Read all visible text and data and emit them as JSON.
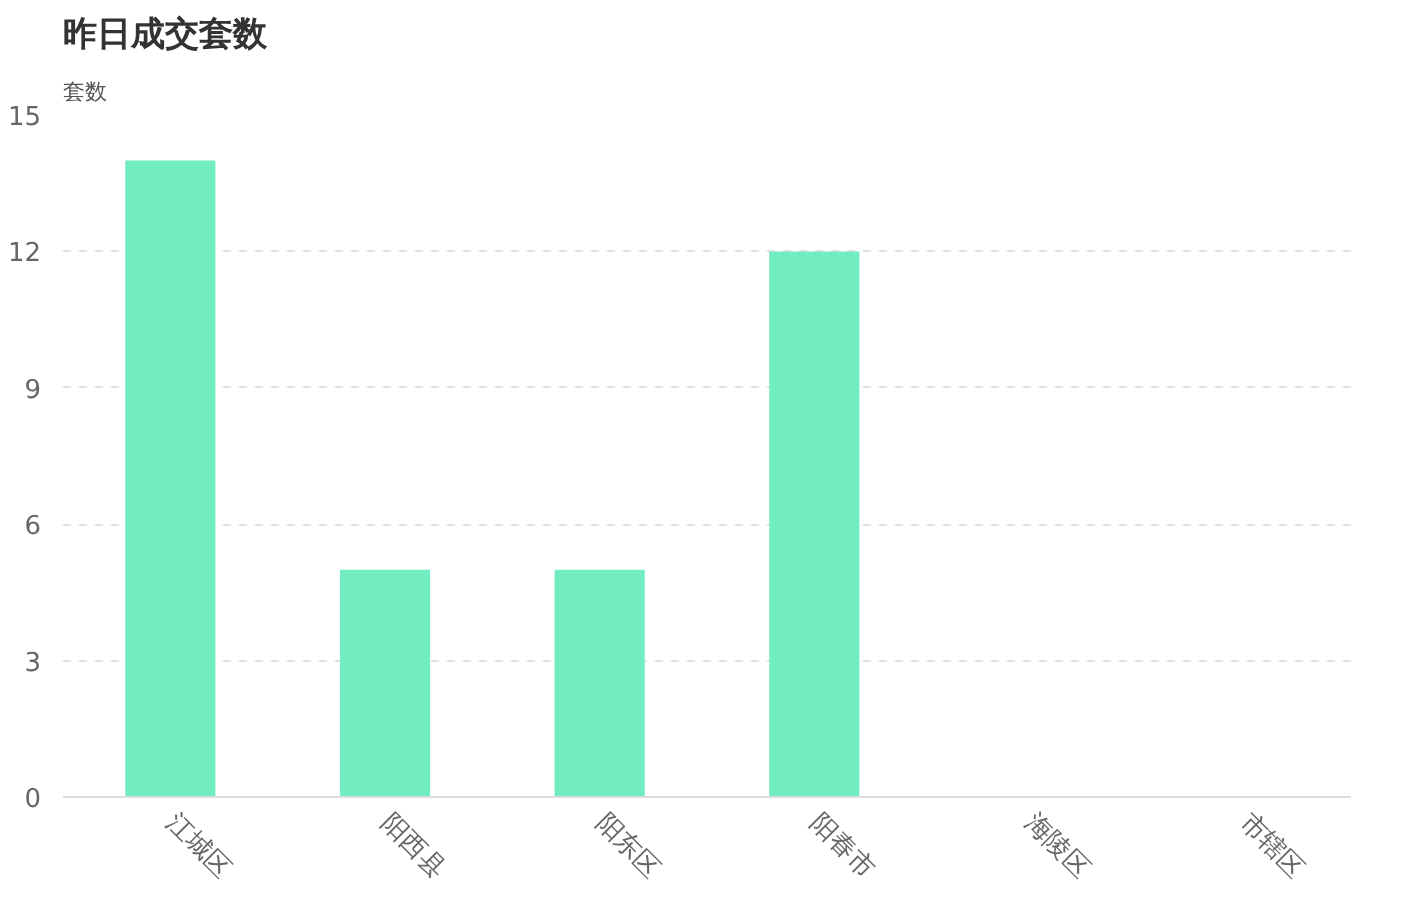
{
  "chart_data": {
    "type": "bar",
    "title": "昨日成交套数",
    "ylabel": "套数",
    "categories": [
      "江城区",
      "阳西县",
      "阳东区",
      "阳春市",
      "海陵区",
      "市辖区"
    ],
    "values": [
      14,
      5,
      5,
      12,
      0,
      0
    ],
    "color": "#72edc0",
    "ylim": [
      0,
      15
    ],
    "yticks": [
      0,
      3,
      6,
      9,
      12,
      15
    ],
    "grid": "y"
  }
}
